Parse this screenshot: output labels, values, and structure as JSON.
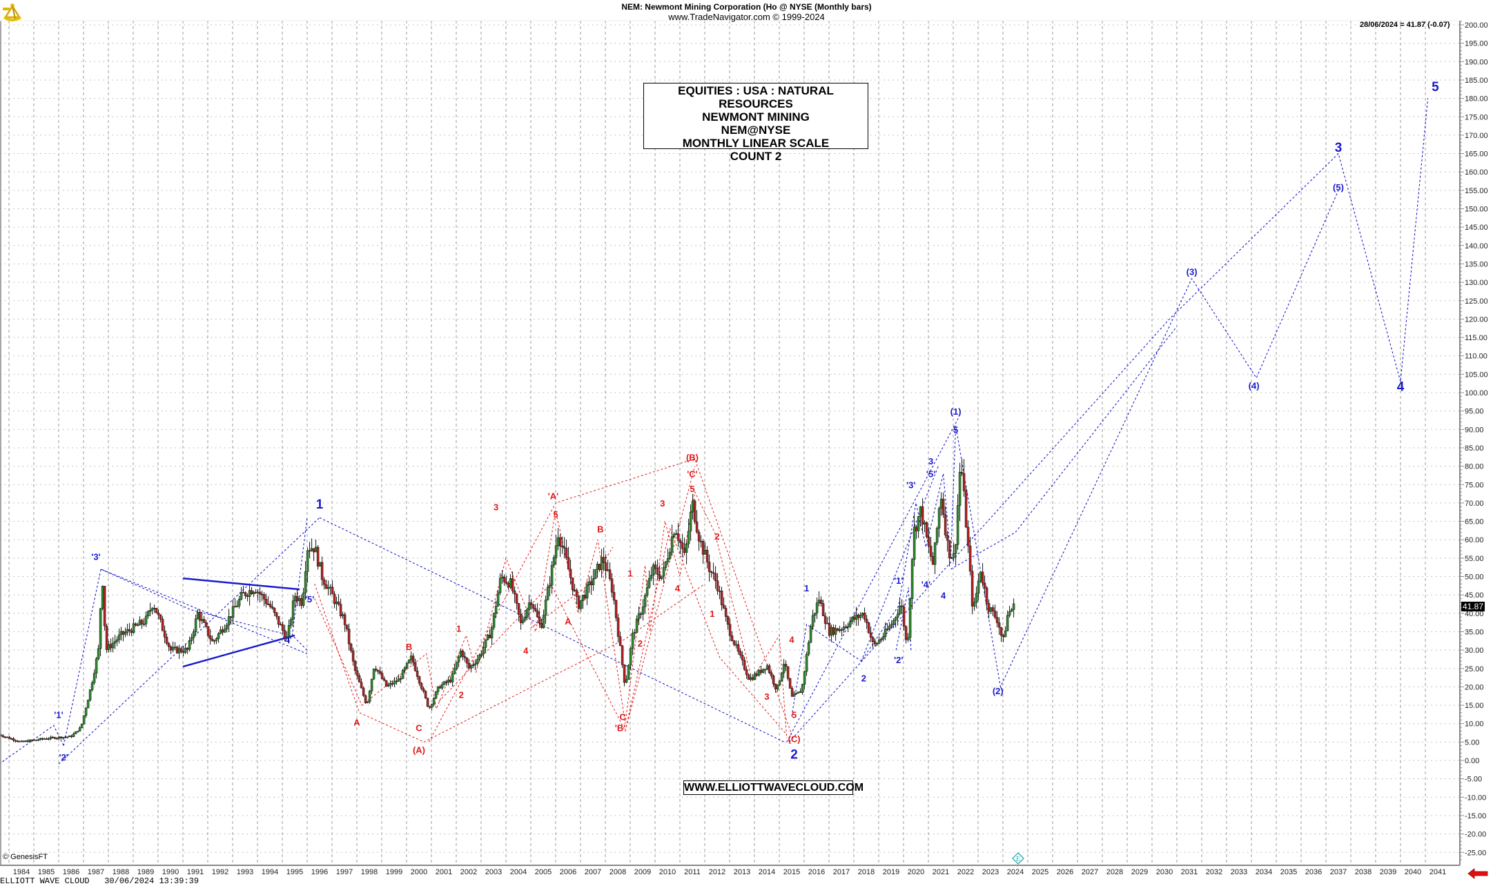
{
  "header": {
    "title": "NEM:  Newmont Mining Corporation (Ho @ NYSE  (Monthly bars)",
    "subtitle": "www.TradeNavigator.com © 1999-2024"
  },
  "last_quote": "28/06/2024 = 41.87 (-0.07)",
  "price_tag": "41.87",
  "info_box": {
    "lines": [
      "EQUITIES : USA : NATURAL RESOURCES",
      "NEWMONT MINING",
      "NEM@NYSE",
      "MONTHLY LINEAR SCALE",
      "COUNT 2"
    ]
  },
  "website": "WWW.ELLIOTTWAVECLOUD.COM",
  "copyright": "© GenesisFT",
  "footer": "ELLIOTT WAVE CLOUD   30/06/2024 13:39:39",
  "icons": {
    "logo": "sextant-icon",
    "scroll": "red-left-arrow-icon",
    "marker": "e-diamond-icon"
  },
  "colors": {
    "up": "#2e8b2e",
    "down": "#b22222",
    "wave_blue": "#1a1acc",
    "wave_red": "#e01818",
    "grid": "#999999",
    "trend": "#1a1acc"
  },
  "chart_data": {
    "type": "candlestick",
    "title": "NEM: Newmont Mining Corporation (Ho @ NYSE (Monthly bars)",
    "xlabel": "",
    "ylabel": "",
    "ylim": [
      -27.5,
      202
    ],
    "y_ticks": [
      200,
      195,
      190,
      185,
      180,
      175,
      170,
      165,
      160,
      155,
      150,
      145,
      140,
      135,
      130,
      125,
      120,
      115,
      110,
      105,
      100,
      95,
      90,
      85,
      80,
      75,
      70,
      65,
      60,
      55,
      50,
      45,
      40,
      35,
      30,
      25,
      20,
      15,
      10,
      5,
      0,
      -5,
      -10,
      -15,
      -20,
      -25
    ],
    "x_ticks": [
      1984,
      1985,
      1986,
      1987,
      1988,
      1989,
      1990,
      1991,
      1992,
      1993,
      1994,
      1995,
      1996,
      1997,
      1998,
      1999,
      2000,
      2001,
      2002,
      2003,
      2004,
      2005,
      2006,
      2007,
      2008,
      2009,
      2010,
      2011,
      2012,
      2013,
      2014,
      2015,
      2016,
      2017,
      2018,
      2019,
      2020,
      2021,
      2022,
      2023,
      2024,
      2025,
      2026,
      2027,
      2028,
      2029,
      2030,
      2031,
      2032,
      2033,
      2034,
      2035,
      2036,
      2037,
      2038,
      2039,
      2040,
      2041
    ],
    "grid": true,
    "last": {
      "date": "28/06/2024",
      "close": 41.87,
      "change": -0.07
    },
    "price_path": [
      [
        1983.6,
        7
      ],
      [
        1984.5,
        5
      ],
      [
        1985.5,
        6
      ],
      [
        1986.5,
        6.5
      ],
      [
        1986.9,
        9
      ],
      [
        1987.3,
        20
      ],
      [
        1987.6,
        30
      ],
      [
        1987.75,
        51
      ],
      [
        1987.9,
        30
      ],
      [
        1988.5,
        34
      ],
      [
        1989.5,
        38
      ],
      [
        1989.8,
        43
      ],
      [
        1990.5,
        30
      ],
      [
        1991.2,
        30
      ],
      [
        1991.6,
        40
      ],
      [
        1992.2,
        32
      ],
      [
        1992.7,
        37
      ],
      [
        1993.4,
        45
      ],
      [
        1993.9,
        47
      ],
      [
        1994.5,
        42
      ],
      [
        1995.2,
        33
      ],
      [
        1995.5,
        45
      ],
      [
        1995.8,
        43
      ],
      [
        1996.0,
        58
      ],
      [
        1996.3,
        58
      ],
      [
        1996.6,
        50
      ],
      [
        1997.0,
        45
      ],
      [
        1997.5,
        38
      ],
      [
        1997.9,
        25
      ],
      [
        1998.4,
        15
      ],
      [
        1998.7,
        26
      ],
      [
        1999.2,
        20
      ],
      [
        1999.7,
        22
      ],
      [
        2000.2,
        28
      ],
      [
        2000.5,
        22
      ],
      [
        2000.9,
        14
      ],
      [
        2001.3,
        20
      ],
      [
        2001.8,
        22
      ],
      [
        2002.2,
        30
      ],
      [
        2002.5,
        25
      ],
      [
        2002.9,
        28
      ],
      [
        2003.4,
        35
      ],
      [
        2003.8,
        50
      ],
      [
        2004.2,
        48
      ],
      [
        2004.6,
        37
      ],
      [
        2005.0,
        44
      ],
      [
        2005.4,
        36
      ],
      [
        2005.8,
        50
      ],
      [
        2006.1,
        62
      ],
      [
        2006.4,
        55
      ],
      [
        2006.9,
        42
      ],
      [
        2007.4,
        48
      ],
      [
        2007.9,
        55
      ],
      [
        2008.3,
        46
      ],
      [
        2008.8,
        20
      ],
      [
        2009.1,
        34
      ],
      [
        2009.5,
        42
      ],
      [
        2009.9,
        52
      ],
      [
        2010.3,
        50
      ],
      [
        2010.8,
        64
      ],
      [
        2011.2,
        55
      ],
      [
        2011.5,
        70
      ],
      [
        2011.8,
        60
      ],
      [
        2012.2,
        52
      ],
      [
        2012.5,
        48
      ],
      [
        2012.9,
        37
      ],
      [
        2013.3,
        30
      ],
      [
        2013.8,
        22
      ],
      [
        2014.2,
        24
      ],
      [
        2014.5,
        26
      ],
      [
        2014.9,
        19
      ],
      [
        2015.2,
        27
      ],
      [
        2015.5,
        17
      ],
      [
        2015.9,
        19
      ],
      [
        2016.3,
        38
      ],
      [
        2016.6,
        44
      ],
      [
        2017.0,
        35
      ],
      [
        2017.5,
        36
      ],
      [
        2017.9,
        38
      ],
      [
        2018.4,
        40
      ],
      [
        2018.8,
        31
      ],
      [
        2019.2,
        34
      ],
      [
        2019.6,
        38
      ],
      [
        2019.9,
        43
      ],
      [
        2020.15,
        30
      ],
      [
        2020.4,
        62
      ],
      [
        2020.7,
        68
      ],
      [
        2021.0,
        58
      ],
      [
        2021.2,
        53
      ],
      [
        2021.5,
        73
      ],
      [
        2021.8,
        57
      ],
      [
        2022.05,
        55
      ],
      [
        2022.3,
        82
      ],
      [
        2022.55,
        62
      ],
      [
        2022.8,
        40
      ],
      [
        2023.1,
        52
      ],
      [
        2023.4,
        42
      ],
      [
        2023.8,
        38
      ],
      [
        2024.0,
        32
      ],
      [
        2024.2,
        40
      ],
      [
        2024.45,
        41.87
      ]
    ],
    "wave_lines": {
      "blue": [
        [
          [
            1983.6,
            -1
          ],
          [
            1985.8,
            9.5
          ],
          [
            1986.2,
            4
          ]
        ],
        [
          [
            1986.2,
            4
          ],
          [
            1987.7,
            52
          ],
          [
            1996.0,
            29
          ]
        ],
        [
          [
            1986.0,
            -1
          ],
          [
            1996.5,
            66
          ]
        ],
        [
          [
            1996.0,
            30
          ],
          [
            1995.4,
            34
          ],
          [
            1996.0,
            66
          ]
        ],
        [
          [
            1987.7,
            52
          ],
          [
            1991.3,
            41
          ],
          [
            1995.3,
            34
          ]
        ],
        [
          [
            1996.5,
            66
          ],
          [
            2015.2,
            5
          ]
        ],
        [
          [
            2015.3,
            5
          ],
          [
            2022.2,
            93
          ]
        ],
        [
          [
            2015.4,
            5
          ],
          [
            2030.7,
            120
          ],
          [
            2037.5,
            165
          ],
          [
            2040.0,
            103
          ],
          [
            2041.1,
            180
          ]
        ],
        [
          [
            2015.5,
            12
          ],
          [
            2016.1,
            37
          ],
          [
            2018.3,
            27
          ],
          [
            2019.8,
            42
          ],
          [
            2020.5,
            70
          ],
          [
            2020.9,
            58
          ],
          [
            2021.6,
            78
          ],
          [
            2021.9,
            55
          ],
          [
            2022.1,
            91
          ],
          [
            2023.9,
            20
          ],
          [
            2031.6,
            131
          ],
          [
            2034.2,
            104
          ],
          [
            2037.5,
            155
          ]
        ],
        [
          [
            2018.3,
            27
          ],
          [
            2021.4,
            80
          ]
        ],
        [
          [
            2019.7,
            30
          ],
          [
            2020.2,
            47
          ],
          [
            2020.3,
            30
          ]
        ],
        [
          [
            2021.9,
            52
          ],
          [
            2024.5,
            62
          ],
          [
            2031.0,
            118
          ]
        ]
      ],
      "red": [
        [
          [
            1996.3,
            44
          ],
          [
            1998.2,
            15
          ],
          [
            2000.8,
            29
          ],
          [
            2001.2,
            14
          ],
          [
            2002.4,
            34
          ],
          [
            2002.8,
            24
          ],
          [
            2004.0,
            55
          ],
          [
            2005.2,
            35
          ],
          [
            2006.0,
            68
          ],
          [
            2006.9,
            40
          ],
          [
            2007.7,
            60
          ],
          [
            2008.8,
            10
          ],
          [
            2009.6,
            53
          ],
          [
            2009.8,
            35
          ],
          [
            2010.4,
            65
          ],
          [
            2011.0,
            50
          ],
          [
            2011.6,
            73
          ],
          [
            2012.4,
            62
          ],
          [
            2013.9,
            22
          ],
          [
            2015.0,
            34
          ],
          [
            2015.3,
            6
          ]
        ],
        [
          [
            1996.3,
            48
          ],
          [
            1998.1,
            13
          ],
          [
            2000.7,
            5
          ],
          [
            2008.8,
            33
          ],
          [
            2012.0,
            48
          ]
        ],
        [
          [
            2000.9,
            5
          ],
          [
            2006.0,
            70
          ],
          [
            2011.6,
            82
          ],
          [
            2015.5,
            7
          ]
        ],
        [
          [
            2001.3,
            16
          ],
          [
            2005.8,
            48
          ],
          [
            2008.8,
            8
          ],
          [
            2011.6,
            80
          ]
        ],
        [
          [
            2008.8,
            8
          ],
          [
            2010.6,
            63
          ],
          [
            2012.6,
            28
          ],
          [
            2015.3,
            7
          ]
        ],
        [
          [
            2005.0,
            36
          ],
          [
            2007.4,
            48
          ],
          [
            2008.3,
            58
          ]
        ]
      ]
    },
    "trendlines": [
      [
        [
          1991.0,
          49.5
        ],
        [
          1995.7,
          46.5
        ]
      ],
      [
        [
          1991.0,
          25.5
        ],
        [
          1995.5,
          34
        ]
      ]
    ],
    "labels": [
      {
        "t": "'1'",
        "x": 1986.0,
        "y": 11.5,
        "c": "blue",
        "s": 13
      },
      {
        "t": "'2'",
        "x": 1986.2,
        "y": 0,
        "c": "blue",
        "s": 13
      },
      {
        "t": "'3'",
        "x": 1987.5,
        "y": 54.5,
        "c": "blue",
        "s": 13
      },
      {
        "t": "'4'",
        "x": 1995.2,
        "y": 32,
        "c": "blue",
        "s": 13
      },
      {
        "t": "'5'",
        "x": 1996.1,
        "y": 43,
        "c": "blue",
        "s": 13
      },
      {
        "t": "1",
        "x": 1996.5,
        "y": 68.5,
        "c": "blue",
        "s": 19
      },
      {
        "t": "A",
        "x": 1998.0,
        "y": 9.5,
        "c": "red",
        "s": 13
      },
      {
        "t": "B",
        "x": 2000.1,
        "y": 30,
        "c": "red",
        "s": 13
      },
      {
        "t": "C",
        "x": 2000.5,
        "y": 8,
        "c": "red",
        "s": 13
      },
      {
        "t": "(A)",
        "x": 2000.5,
        "y": 2,
        "c": "red",
        "s": 13
      },
      {
        "t": "1",
        "x": 2002.1,
        "y": 35,
        "c": "red",
        "s": 13
      },
      {
        "t": "2",
        "x": 2002.2,
        "y": 17,
        "c": "red",
        "s": 13
      },
      {
        "t": "3",
        "x": 2003.6,
        "y": 68,
        "c": "red",
        "s": 13
      },
      {
        "t": "4",
        "x": 2004.8,
        "y": 29,
        "c": "red",
        "s": 13
      },
      {
        "t": "'A'",
        "x": 2005.9,
        "y": 71,
        "c": "red",
        "s": 13
      },
      {
        "t": "5",
        "x": 2006.0,
        "y": 66,
        "c": "red",
        "s": 13
      },
      {
        "t": "A",
        "x": 2006.5,
        "y": 37,
        "c": "red",
        "s": 13
      },
      {
        "t": "B",
        "x": 2007.8,
        "y": 62,
        "c": "red",
        "s": 13
      },
      {
        "t": "1",
        "x": 2009.0,
        "y": 50,
        "c": "red",
        "s": 13
      },
      {
        "t": "2",
        "x": 2009.4,
        "y": 31,
        "c": "red",
        "s": 13
      },
      {
        "t": "C",
        "x": 2008.7,
        "y": 11,
        "c": "red",
        "s": 13
      },
      {
        "t": "'B'",
        "x": 2008.6,
        "y": 8,
        "c": "red",
        "s": 13
      },
      {
        "t": "3",
        "x": 2010.3,
        "y": 69,
        "c": "red",
        "s": 13
      },
      {
        "t": "4",
        "x": 2010.9,
        "y": 46,
        "c": "red",
        "s": 13
      },
      {
        "t": "(B)",
        "x": 2011.5,
        "y": 81.5,
        "c": "red",
        "s": 13
      },
      {
        "t": "'C'",
        "x": 2011.5,
        "y": 77,
        "c": "red",
        "s": 13
      },
      {
        "t": "5",
        "x": 2011.5,
        "y": 73,
        "c": "red",
        "s": 13
      },
      {
        "t": "2",
        "x": 2012.5,
        "y": 60,
        "c": "red",
        "s": 13
      },
      {
        "t": "1",
        "x": 2012.3,
        "y": 39,
        "c": "red",
        "s": 13
      },
      {
        "t": "3",
        "x": 2014.5,
        "y": 16.5,
        "c": "red",
        "s": 13
      },
      {
        "t": "4",
        "x": 2015.5,
        "y": 32,
        "c": "red",
        "s": 13
      },
      {
        "t": "5",
        "x": 2015.6,
        "y": 11.5,
        "c": "red",
        "s": 13
      },
      {
        "t": "(C)",
        "x": 2015.6,
        "y": 5,
        "c": "red",
        "s": 13
      },
      {
        "t": "2",
        "x": 2015.6,
        "y": 0.5,
        "c": "blue",
        "s": 19
      },
      {
        "t": "1",
        "x": 2016.1,
        "y": 46,
        "c": "blue",
        "s": 13
      },
      {
        "t": "2",
        "x": 2018.4,
        "y": 21.5,
        "c": "blue",
        "s": 13
      },
      {
        "t": "'1'",
        "x": 2019.8,
        "y": 48,
        "c": "blue",
        "s": 13
      },
      {
        "t": "'2'",
        "x": 2019.8,
        "y": 26.5,
        "c": "blue",
        "s": 13
      },
      {
        "t": "'3'",
        "x": 2020.3,
        "y": 74,
        "c": "blue",
        "s": 13
      },
      {
        "t": "'4'",
        "x": 2020.9,
        "y": 47,
        "c": "blue",
        "s": 13
      },
      {
        "t": "3",
        "x": 2021.1,
        "y": 80.5,
        "c": "blue",
        "s": 13
      },
      {
        "t": "'5'",
        "x": 2021.1,
        "y": 77,
        "c": "blue",
        "s": 13
      },
      {
        "t": "4",
        "x": 2021.6,
        "y": 44,
        "c": "blue",
        "s": 13
      },
      {
        "t": "5",
        "x": 2022.1,
        "y": 89,
        "c": "blue",
        "s": 13
      },
      {
        "t": "(1)",
        "x": 2022.1,
        "y": 94,
        "c": "blue",
        "s": 13
      },
      {
        "t": "(2)",
        "x": 2023.8,
        "y": 18,
        "c": "blue",
        "s": 13
      },
      {
        "t": "(3)",
        "x": 2031.6,
        "y": 132,
        "c": "blue",
        "s": 13
      },
      {
        "t": "(4)",
        "x": 2034.1,
        "y": 101,
        "c": "blue",
        "s": 13
      },
      {
        "t": "3",
        "x": 2037.5,
        "y": 165.5,
        "c": "blue",
        "s": 19
      },
      {
        "t": "(5)",
        "x": 2037.5,
        "y": 155,
        "c": "blue",
        "s": 13
      },
      {
        "t": "4",
        "x": 2040.0,
        "y": 100.5,
        "c": "blue",
        "s": 19
      },
      {
        "t": "5",
        "x": 2041.4,
        "y": 182,
        "c": "blue",
        "s": 19
      }
    ]
  }
}
